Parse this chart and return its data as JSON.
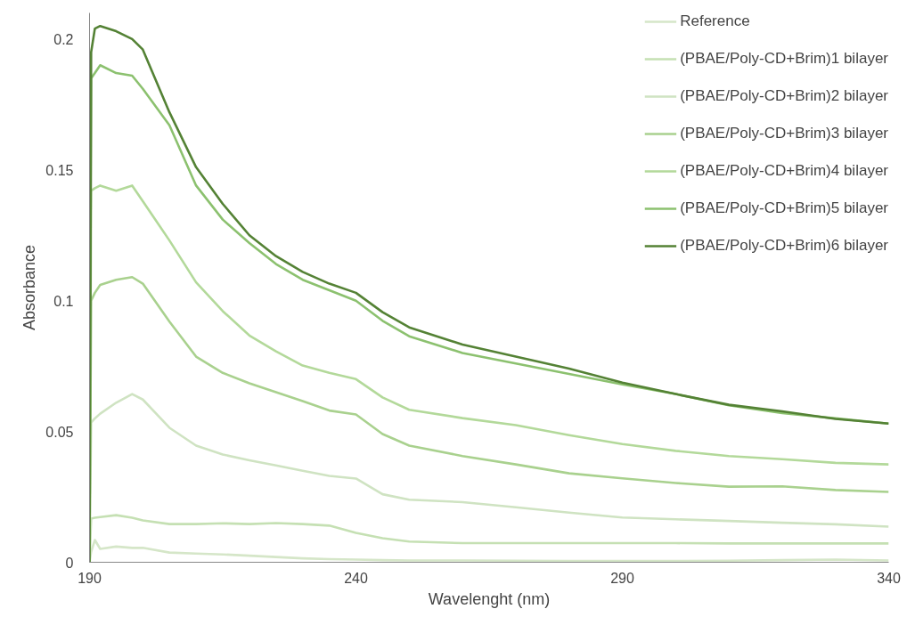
{
  "chart_data": {
    "type": "line",
    "xlabel": "Wavelenght (nm)",
    "ylabel": "Absorbance",
    "x": [
      190,
      190.3,
      191,
      192,
      195,
      198,
      200,
      205,
      210,
      215,
      220,
      225,
      230,
      235,
      240,
      245,
      250,
      260,
      270,
      280,
      290,
      300,
      310,
      320,
      330,
      340
    ],
    "series": [
      {
        "name": "Reference",
        "color": "#d5e6c8",
        "values": [
          0,
          0.004,
          0.0085,
          0.0051,
          0.006,
          0.0055,
          0.0055,
          0.0037,
          0.0033,
          0.003,
          0.0025,
          0.002,
          0.0015,
          0.0012,
          0.001,
          0.0008,
          0.0007,
          0.0007,
          0.0006,
          0.0005,
          0.0005,
          0.0005,
          0.0006,
          0.0008,
          0.001,
          0.0007
        ]
      },
      {
        "name": "(PBAE/Poly-CD+Brim)1 bilayer",
        "color": "#c5e0b3",
        "values": [
          0,
          0.0167,
          0.017,
          0.0173,
          0.018,
          0.017,
          0.016,
          0.0146,
          0.0146,
          0.0149,
          0.0146,
          0.015,
          0.0146,
          0.014,
          0.0112,
          0.0092,
          0.0079,
          0.0073,
          0.0073,
          0.0073,
          0.0073,
          0.0073,
          0.0072,
          0.0072,
          0.0072,
          0.0072
        ]
      },
      {
        "name": "(PBAE/Poly-CD+Brim)2 bilayer",
        "color": "#cfe3c2",
        "values": [
          0,
          0.0534,
          0.055,
          0.0568,
          0.061,
          0.0643,
          0.0622,
          0.0514,
          0.0446,
          0.0412,
          0.039,
          0.037,
          0.035,
          0.033,
          0.032,
          0.026,
          0.0239,
          0.023,
          0.021,
          0.019,
          0.0171,
          0.0164,
          0.0158,
          0.0151,
          0.0145,
          0.0136
        ]
      },
      {
        "name": "(PBAE/Poly-CD+Brim)3 bilayer",
        "color": "#a9d18e",
        "values": [
          0,
          0.1,
          0.103,
          0.106,
          0.108,
          0.109,
          0.1065,
          0.092,
          0.0786,
          0.0724,
          0.0684,
          0.065,
          0.0616,
          0.058,
          0.0565,
          0.049,
          0.0446,
          0.0406,
          0.0374,
          0.034,
          0.0321,
          0.0303,
          0.0289,
          0.029,
          0.0276,
          0.0269
        ]
      },
      {
        "name": "(PBAE/Poly-CD+Brim)4 bilayer",
        "color": "#b3d99a",
        "values": [
          0,
          0.142,
          0.143,
          0.144,
          0.142,
          0.144,
          0.138,
          0.123,
          0.107,
          0.096,
          0.0867,
          0.0806,
          0.0752,
          0.0724,
          0.07,
          0.063,
          0.0583,
          0.0551,
          0.0524,
          0.0486,
          0.0452,
          0.0426,
          0.0406,
          0.0394,
          0.038,
          0.0374
        ]
      },
      {
        "name": "(PBAE/Poly-CD+Brim)5 bilayer",
        "color": "#8cc16f",
        "values": [
          0,
          0.185,
          0.187,
          0.19,
          0.187,
          0.186,
          0.181,
          0.167,
          0.144,
          0.131,
          0.122,
          0.114,
          0.108,
          0.104,
          0.1,
          0.0923,
          0.0864,
          0.08,
          0.076,
          0.072,
          0.068,
          0.0643,
          0.06,
          0.057,
          0.055,
          0.053
        ]
      },
      {
        "name": "(PBAE/Poly-CD+Brim)6 bilayer",
        "color": "#548235",
        "values": [
          0,
          0.195,
          0.204,
          0.205,
          0.203,
          0.2,
          0.196,
          0.172,
          0.151,
          0.137,
          0.125,
          0.117,
          0.111,
          0.1065,
          0.103,
          0.0956,
          0.0898,
          0.0832,
          0.0786,
          0.074,
          0.0687,
          0.0643,
          0.0602,
          0.0577,
          0.0548,
          0.053
        ]
      }
    ],
    "xlim": [
      190,
      340
    ],
    "ylim": [
      0,
      0.21
    ],
    "xticks": [
      190,
      240,
      290,
      340
    ],
    "yticks": [
      0,
      0.05,
      0.1,
      0.15,
      0.2
    ],
    "grid": false,
    "legend": "top right",
    "marker": "none",
    "line_style": "solid"
  }
}
